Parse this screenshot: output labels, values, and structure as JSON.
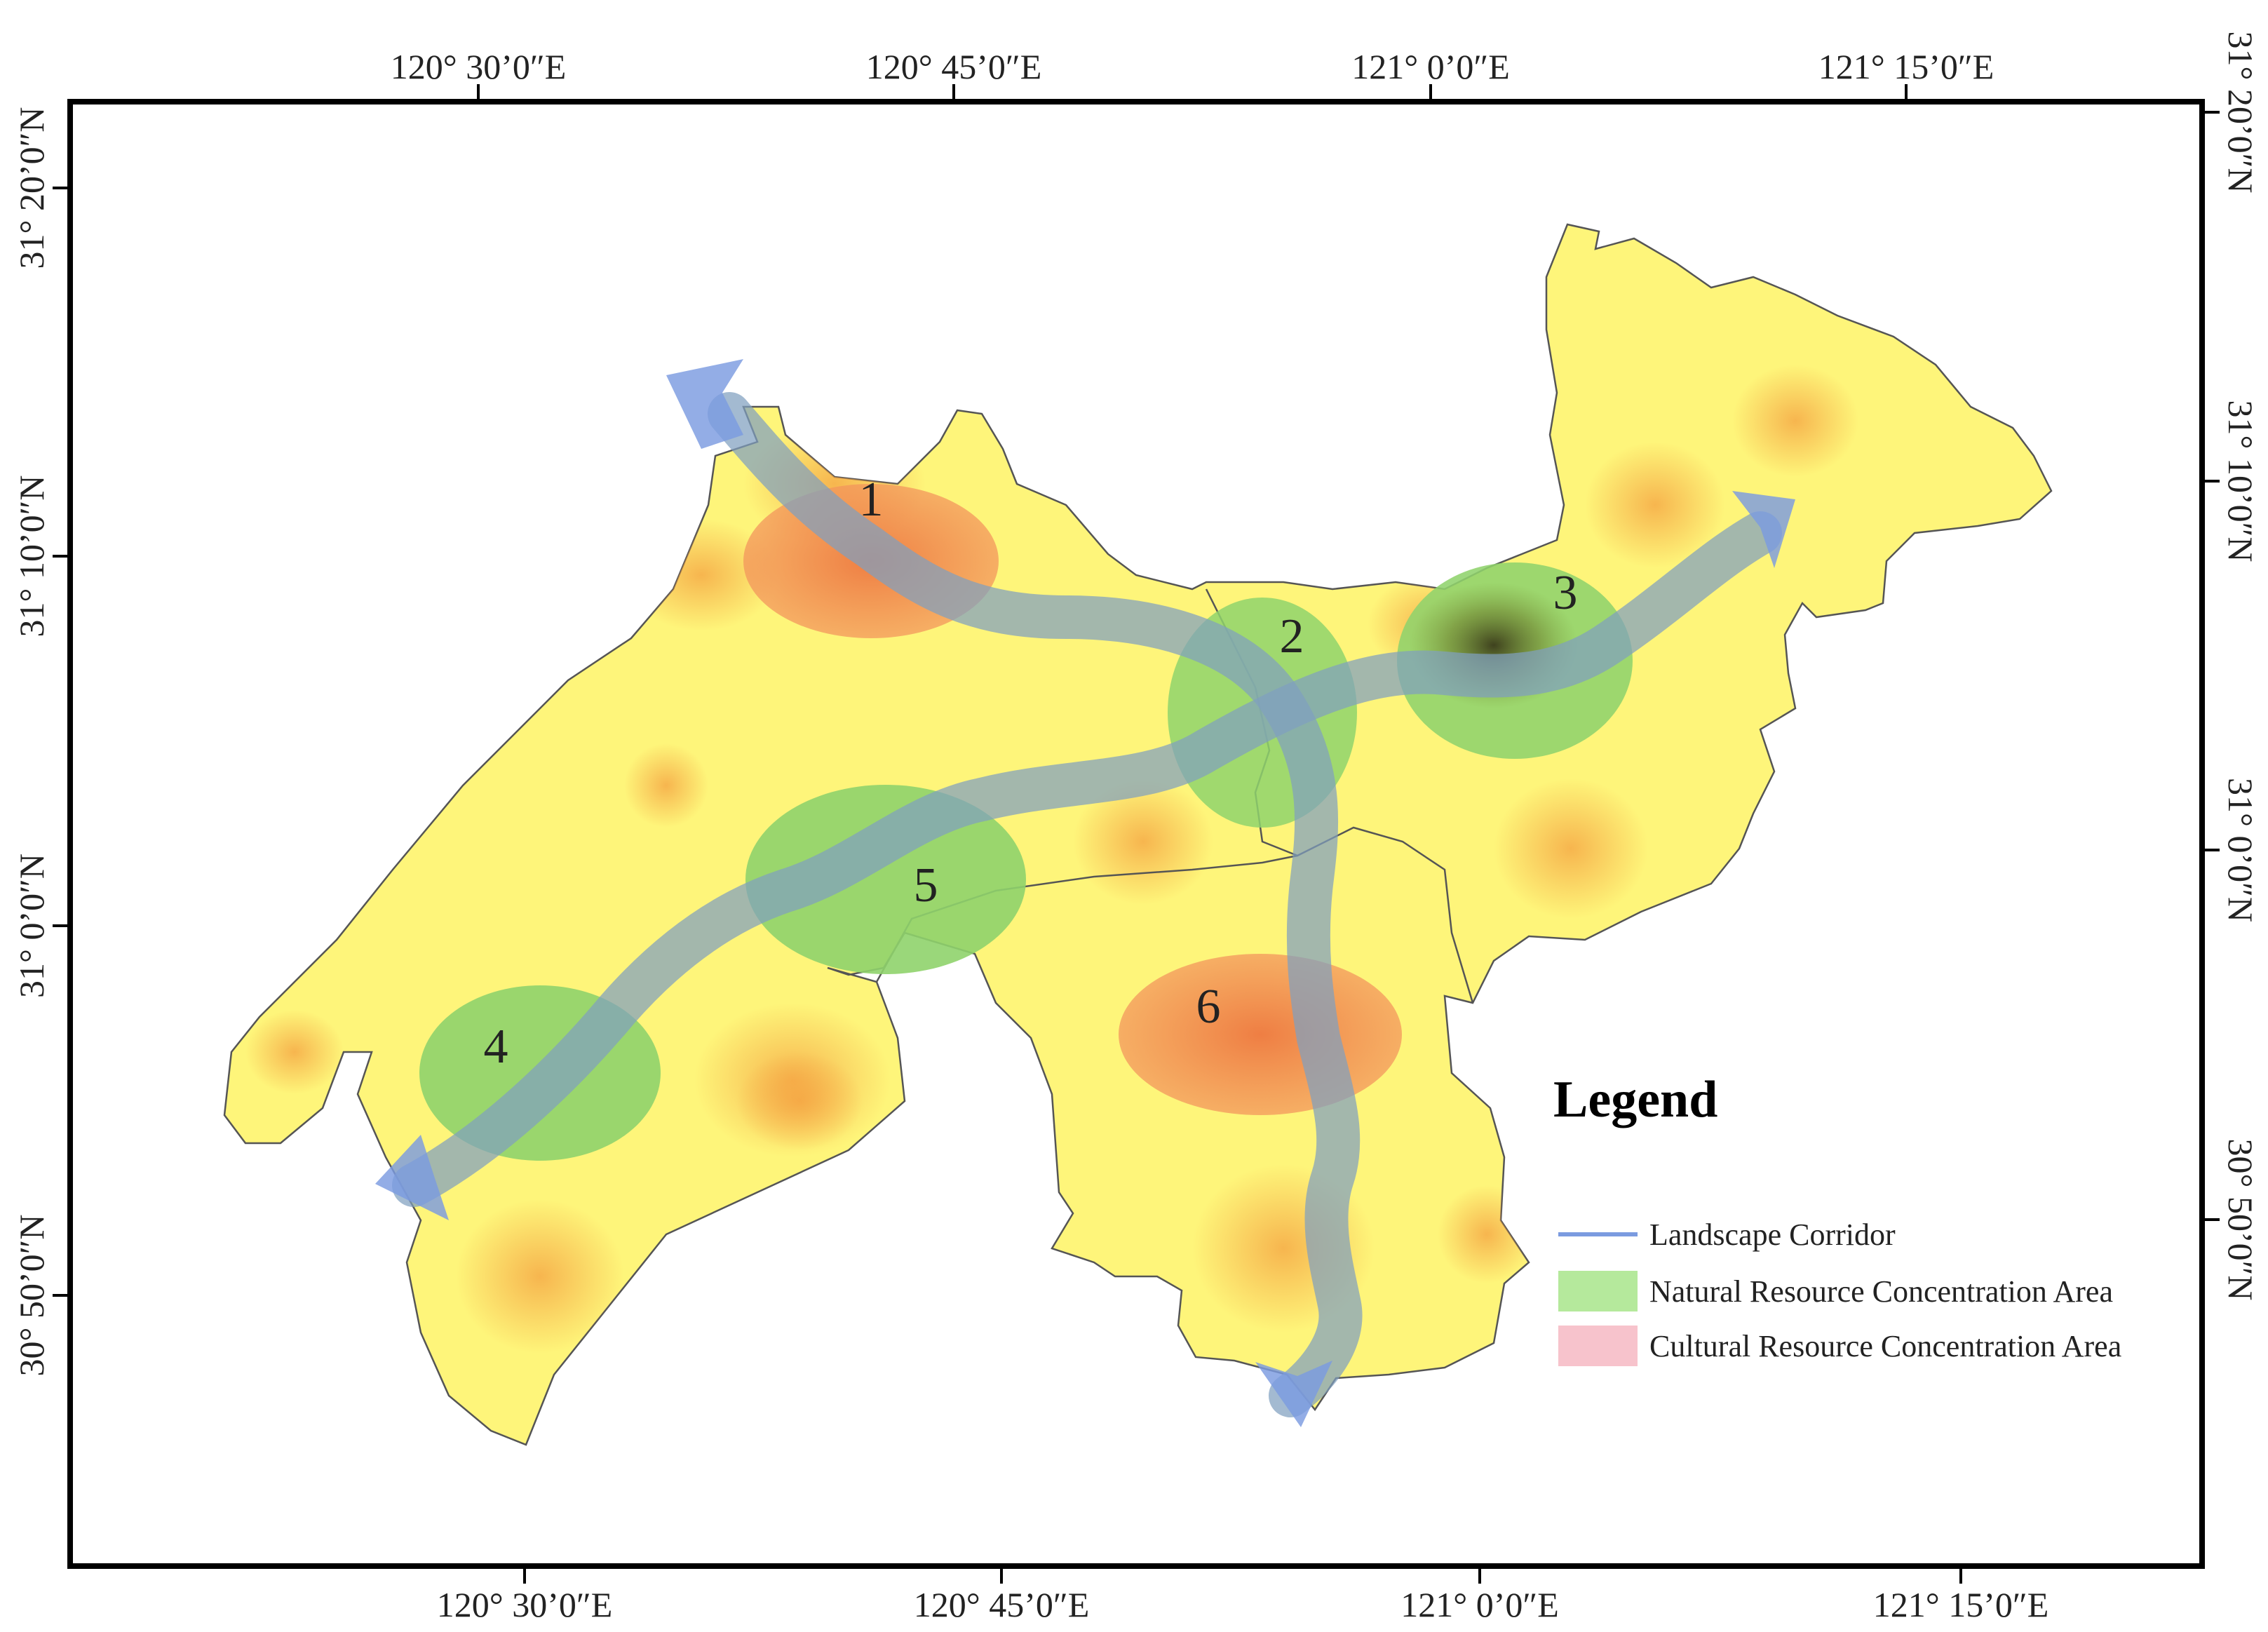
{
  "map": {
    "top_ticks": [
      "120° 30’0″E",
      "120° 45’0″E",
      "121° 0’0″E",
      "121° 15’0″E"
    ],
    "bottom_ticks": [
      "120° 30’0″E",
      "120° 45’0″E",
      "121° 0’0″E",
      "121° 15’0″E"
    ],
    "left_ticks": [
      "31° 20’0″N",
      "31° 10’0″N",
      "31° 0’0″N",
      "30° 50’0″N"
    ],
    "right_ticks": [
      "31° 20’0″N",
      "31° 10’0″N",
      "31° 0’0″N",
      "30° 50’0″N"
    ],
    "zones": [
      {
        "label": "1",
        "type": "cultural"
      },
      {
        "label": "2",
        "type": "natural"
      },
      {
        "label": "3",
        "type": "natural"
      },
      {
        "label": "4",
        "type": "natural"
      },
      {
        "label": "5",
        "type": "natural"
      },
      {
        "label": "6",
        "type": "cultural"
      }
    ],
    "colors": {
      "land": "#fef57a",
      "land_stroke": "#555555",
      "corridor": "#7f9fbf",
      "corridor_arrow": "#7b9be0",
      "natural": "#8fd36c",
      "cultural": "#f08a5a",
      "legend_corridor": "#7b9be0",
      "legend_natural": "#b5e99c",
      "legend_cultural": "#f7c3cc"
    }
  },
  "legend": {
    "title": "Legend",
    "items": [
      {
        "label": "Landscape Corridor"
      },
      {
        "label": "Natural Resource Concentration Area"
      },
      {
        "label": "Cultural Resource Concentration Area"
      }
    ]
  }
}
